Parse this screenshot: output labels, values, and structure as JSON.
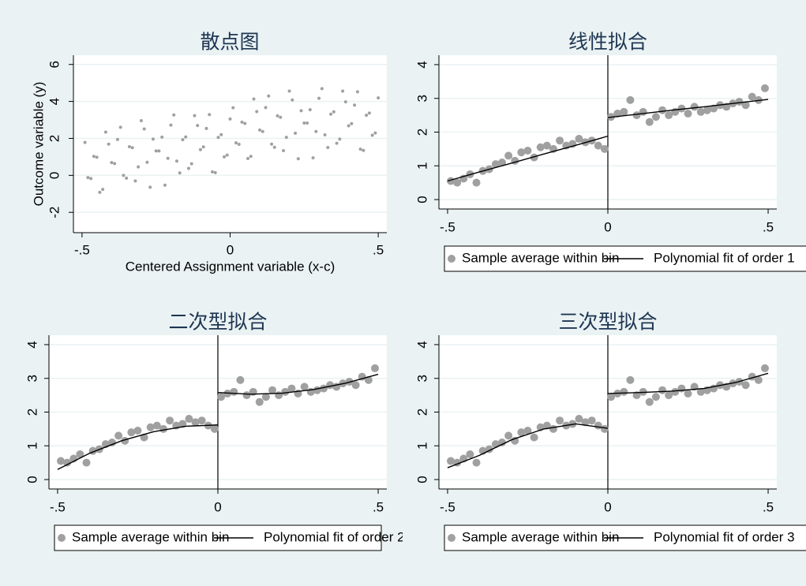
{
  "chart_data": [
    {
      "type": "scatter",
      "title": "散点图",
      "x_label": "Centered Assignment variable (x-c)",
      "y_label": "Outcome variable (y)",
      "xlim": [
        -0.529,
        0.529
      ],
      "ylim": [
        -3.1,
        6.5
      ],
      "xticks": [
        {
          "value": -0.5,
          "label": "-.5"
        },
        0,
        {
          "value": 0.5,
          "label": ".5"
        }
      ],
      "yticks": [
        -2,
        0,
        2,
        4,
        6
      ],
      "grid": true,
      "legend": false,
      "series": [
        {
          "color": "#a0a0a0",
          "x": [
            -0.49,
            -0.47,
            -0.45,
            -0.43,
            -0.41,
            -0.39,
            -0.37,
            -0.35,
            -0.33,
            -0.31,
            -0.29,
            -0.27,
            -0.25,
            -0.23,
            -0.21,
            -0.19,
            -0.17,
            -0.15,
            -0.13,
            -0.11,
            -0.09,
            -0.07,
            -0.05,
            -0.03,
            -0.01,
            -0.48,
            -0.46,
            -0.44,
            -0.42,
            -0.4,
            -0.38,
            -0.36,
            -0.34,
            -0.32,
            -0.3,
            -0.28,
            -0.26,
            -0.24,
            -0.22,
            -0.2,
            -0.18,
            -0.16,
            -0.14,
            -0.12,
            -0.1,
            -0.08,
            -0.06,
            -0.04,
            -0.02,
            0,
            0.01,
            0.03,
            0.05,
            0.07,
            0.09,
            0.11,
            0.13,
            0.15,
            0.17,
            0.19,
            0.21,
            0.23,
            0.25,
            0.27,
            0.29,
            0.31,
            0.33,
            0.35,
            0.37,
            0.39,
            0.41,
            0.43,
            0.45,
            0.47,
            0.49,
            0.02,
            0.04,
            0.06,
            0.08,
            0.1,
            0.12,
            0.14,
            0.16,
            0.18,
            0.2,
            0.22,
            0.24,
            0.26,
            0.28,
            0.3,
            0.32,
            0.34,
            0.36,
            0.38,
            0.4,
            0.42,
            0.44,
            0.46,
            0.48,
            0.5
          ],
          "values": [
            1.78,
            -0.17,
            0.98,
            -0.76,
            1.69,
            0.64,
            2.6,
            -0.15,
            1.5,
            0.46,
            2.51,
            -0.64,
            1.32,
            2.07,
            0.92,
            3.27,
            0.13,
            2.08,
            0.63,
            2.7,
            1.54,
            3.29,
            0.15,
            2.2,
            1.1,
            -0.12,
            1.03,
            -0.92,
            2.34,
            0.69,
            1.94,
            0.0,
            1.55,
            -0.3,
            2.96,
            0.71,
            1.96,
            1.32,
            -0.53,
            2.72,
            0.77,
            1.93,
            0.38,
            3.23,
            1.39,
            2.54,
            0.19,
            2.05,
            1.0,
            3.05,
            3.66,
            1.68,
            2.81,
            1.03,
            3.45,
            2.37,
            4.29,
            1.52,
            3.14,
            2.06,
            4.08,
            0.9,
            2.83,
            3.55,
            2.37,
            4.69,
            1.51,
            3.44,
            1.96,
            3.98,
            2.8,
            4.52,
            1.35,
            3.37,
            2.29,
            1.76,
            2.88,
            0.91,
            4.13,
            2.45,
            3.67,
            1.69,
            3.22,
            1.34,
            4.56,
            2.28,
            3.5,
            2.83,
            0.95,
            4.17,
            2.19,
            3.31,
            1.74,
            4.56,
            2.68,
            3.8,
            1.42,
            3.25,
            2.17,
            4.19
          ]
        }
      ]
    },
    {
      "type": "scatter",
      "title": "线性拟合",
      "xlim": [
        -0.527,
        0.527
      ],
      "ylim": [
        -0.28,
        4.28
      ],
      "xticks": [
        {
          "value": -0.5,
          "label": "-.5"
        },
        0,
        {
          "value": 0.5,
          "label": ".5"
        }
      ],
      "yticks": [
        0,
        1,
        2,
        3,
        4
      ],
      "xline": 0,
      "grid": true,
      "legend": true,
      "series": [
        {
          "name": "Sample average within bin",
          "color": "#a0a0a0",
          "x": [
            -0.49,
            -0.47,
            -0.45,
            -0.43,
            -0.41,
            -0.39,
            -0.37,
            -0.35,
            -0.33,
            -0.31,
            -0.29,
            -0.27,
            -0.25,
            -0.23,
            -0.21,
            -0.19,
            -0.17,
            -0.15,
            -0.13,
            -0.11,
            -0.09,
            -0.07,
            -0.05,
            -0.03,
            -0.01,
            0.01,
            0.03,
            0.05,
            0.07,
            0.09,
            0.11,
            0.13,
            0.15,
            0.17,
            0.19,
            0.21,
            0.23,
            0.25,
            0.27,
            0.29,
            0.31,
            0.33,
            0.35,
            0.37,
            0.39,
            0.41,
            0.43,
            0.45,
            0.47,
            0.49
          ],
          "values": [
            0.55,
            0.5,
            0.62,
            0.75,
            0.5,
            0.85,
            0.9,
            1.05,
            1.1,
            1.3,
            1.15,
            1.4,
            1.45,
            1.25,
            1.55,
            1.6,
            1.5,
            1.75,
            1.6,
            1.65,
            1.8,
            1.7,
            1.75,
            1.6,
            1.5,
            2.45,
            2.55,
            2.6,
            2.95,
            2.5,
            2.6,
            2.3,
            2.45,
            2.65,
            2.5,
            2.6,
            2.7,
            2.55,
            2.75,
            2.6,
            2.65,
            2.7,
            2.8,
            2.75,
            2.85,
            2.9,
            2.8,
            3.05,
            2.95,
            3.3
          ]
        },
        {
          "name": "Polynomial fit of order 1",
          "color": "#000000",
          "kind": "line",
          "x": [
            -0.5,
            -0.4,
            -0.3,
            -0.2,
            -0.1,
            0,
            null,
            0,
            0.1,
            0.2,
            0.3,
            0.4,
            0.5
          ],
          "values": [
            0.55,
            0.82,
            1.08,
            1.35,
            1.61,
            1.88,
            null,
            2.43,
            2.54,
            2.65,
            2.75,
            2.86,
            2.97
          ]
        }
      ]
    },
    {
      "type": "scatter",
      "title": "二次型拟合",
      "xlim": [
        -0.527,
        0.527
      ],
      "ylim": [
        -0.28,
        4.28
      ],
      "xticks": [
        {
          "value": -0.5,
          "label": "-.5"
        },
        0,
        {
          "value": 0.5,
          "label": ".5"
        }
      ],
      "yticks": [
        0,
        1,
        2,
        3,
        4
      ],
      "xline": 0,
      "grid": true,
      "legend": true,
      "series": [
        {
          "name": "Sample average within bin",
          "color": "#a0a0a0",
          "x": [
            -0.49,
            -0.47,
            -0.45,
            -0.43,
            -0.41,
            -0.39,
            -0.37,
            -0.35,
            -0.33,
            -0.31,
            -0.29,
            -0.27,
            -0.25,
            -0.23,
            -0.21,
            -0.19,
            -0.17,
            -0.15,
            -0.13,
            -0.11,
            -0.09,
            -0.07,
            -0.05,
            -0.03,
            -0.01,
            0.01,
            0.03,
            0.05,
            0.07,
            0.09,
            0.11,
            0.13,
            0.15,
            0.17,
            0.19,
            0.21,
            0.23,
            0.25,
            0.27,
            0.29,
            0.31,
            0.33,
            0.35,
            0.37,
            0.39,
            0.41,
            0.43,
            0.45,
            0.47,
            0.49
          ],
          "values": [
            0.55,
            0.5,
            0.62,
            0.75,
            0.5,
            0.85,
            0.9,
            1.05,
            1.1,
            1.3,
            1.15,
            1.4,
            1.45,
            1.25,
            1.55,
            1.6,
            1.5,
            1.75,
            1.6,
            1.65,
            1.8,
            1.7,
            1.75,
            1.6,
            1.5,
            2.45,
            2.55,
            2.6,
            2.95,
            2.5,
            2.6,
            2.3,
            2.45,
            2.65,
            2.5,
            2.6,
            2.7,
            2.55,
            2.75,
            2.6,
            2.65,
            2.7,
            2.8,
            2.75,
            2.85,
            2.9,
            2.8,
            3.05,
            2.95,
            3.3
          ]
        },
        {
          "name": "Polynomial fit of order 2",
          "color": "#000000",
          "kind": "line",
          "x": [
            -0.5,
            -0.4,
            -0.3,
            -0.2,
            -0.1,
            0,
            null,
            0,
            0.1,
            0.2,
            0.3,
            0.4,
            0.5
          ],
          "values": [
            0.3,
            0.78,
            1.15,
            1.42,
            1.58,
            1.62,
            null,
            2.58,
            2.53,
            2.56,
            2.67,
            2.86,
            3.12
          ]
        }
      ]
    },
    {
      "type": "scatter",
      "title": "三次型拟合",
      "xlim": [
        -0.527,
        0.527
      ],
      "ylim": [
        -0.28,
        4.28
      ],
      "xticks": [
        {
          "value": -0.5,
          "label": "-.5"
        },
        0,
        {
          "value": 0.5,
          "label": ".5"
        }
      ],
      "yticks": [
        0,
        1,
        2,
        3,
        4
      ],
      "xline": 0,
      "grid": true,
      "legend": true,
      "series": [
        {
          "name": "Sample average within bin",
          "color": "#a0a0a0",
          "x": [
            -0.49,
            -0.47,
            -0.45,
            -0.43,
            -0.41,
            -0.39,
            -0.37,
            -0.35,
            -0.33,
            -0.31,
            -0.29,
            -0.27,
            -0.25,
            -0.23,
            -0.21,
            -0.19,
            -0.17,
            -0.15,
            -0.13,
            -0.11,
            -0.09,
            -0.07,
            -0.05,
            -0.03,
            -0.01,
            0.01,
            0.03,
            0.05,
            0.07,
            0.09,
            0.11,
            0.13,
            0.15,
            0.17,
            0.19,
            0.21,
            0.23,
            0.25,
            0.27,
            0.29,
            0.31,
            0.33,
            0.35,
            0.37,
            0.39,
            0.41,
            0.43,
            0.45,
            0.47,
            0.49
          ],
          "values": [
            0.55,
            0.5,
            0.62,
            0.75,
            0.5,
            0.85,
            0.9,
            1.05,
            1.1,
            1.3,
            1.15,
            1.4,
            1.45,
            1.25,
            1.55,
            1.6,
            1.5,
            1.75,
            1.6,
            1.65,
            1.8,
            1.7,
            1.75,
            1.6,
            1.5,
            2.45,
            2.55,
            2.6,
            2.95,
            2.5,
            2.6,
            2.3,
            2.45,
            2.65,
            2.5,
            2.6,
            2.7,
            2.55,
            2.75,
            2.6,
            2.65,
            2.7,
            2.8,
            2.75,
            2.85,
            2.9,
            2.8,
            3.05,
            2.95,
            3.3
          ]
        },
        {
          "name": "Polynomial fit of order 3",
          "color": "#000000",
          "kind": "line",
          "x": [
            -0.5,
            -0.4,
            -0.3,
            -0.2,
            -0.1,
            0,
            null,
            0,
            0.1,
            0.2,
            0.3,
            0.4,
            0.5
          ],
          "values": [
            0.35,
            0.72,
            1.18,
            1.5,
            1.65,
            1.52,
            null,
            2.55,
            2.58,
            2.62,
            2.7,
            2.88,
            3.15
          ]
        }
      ]
    }
  ]
}
